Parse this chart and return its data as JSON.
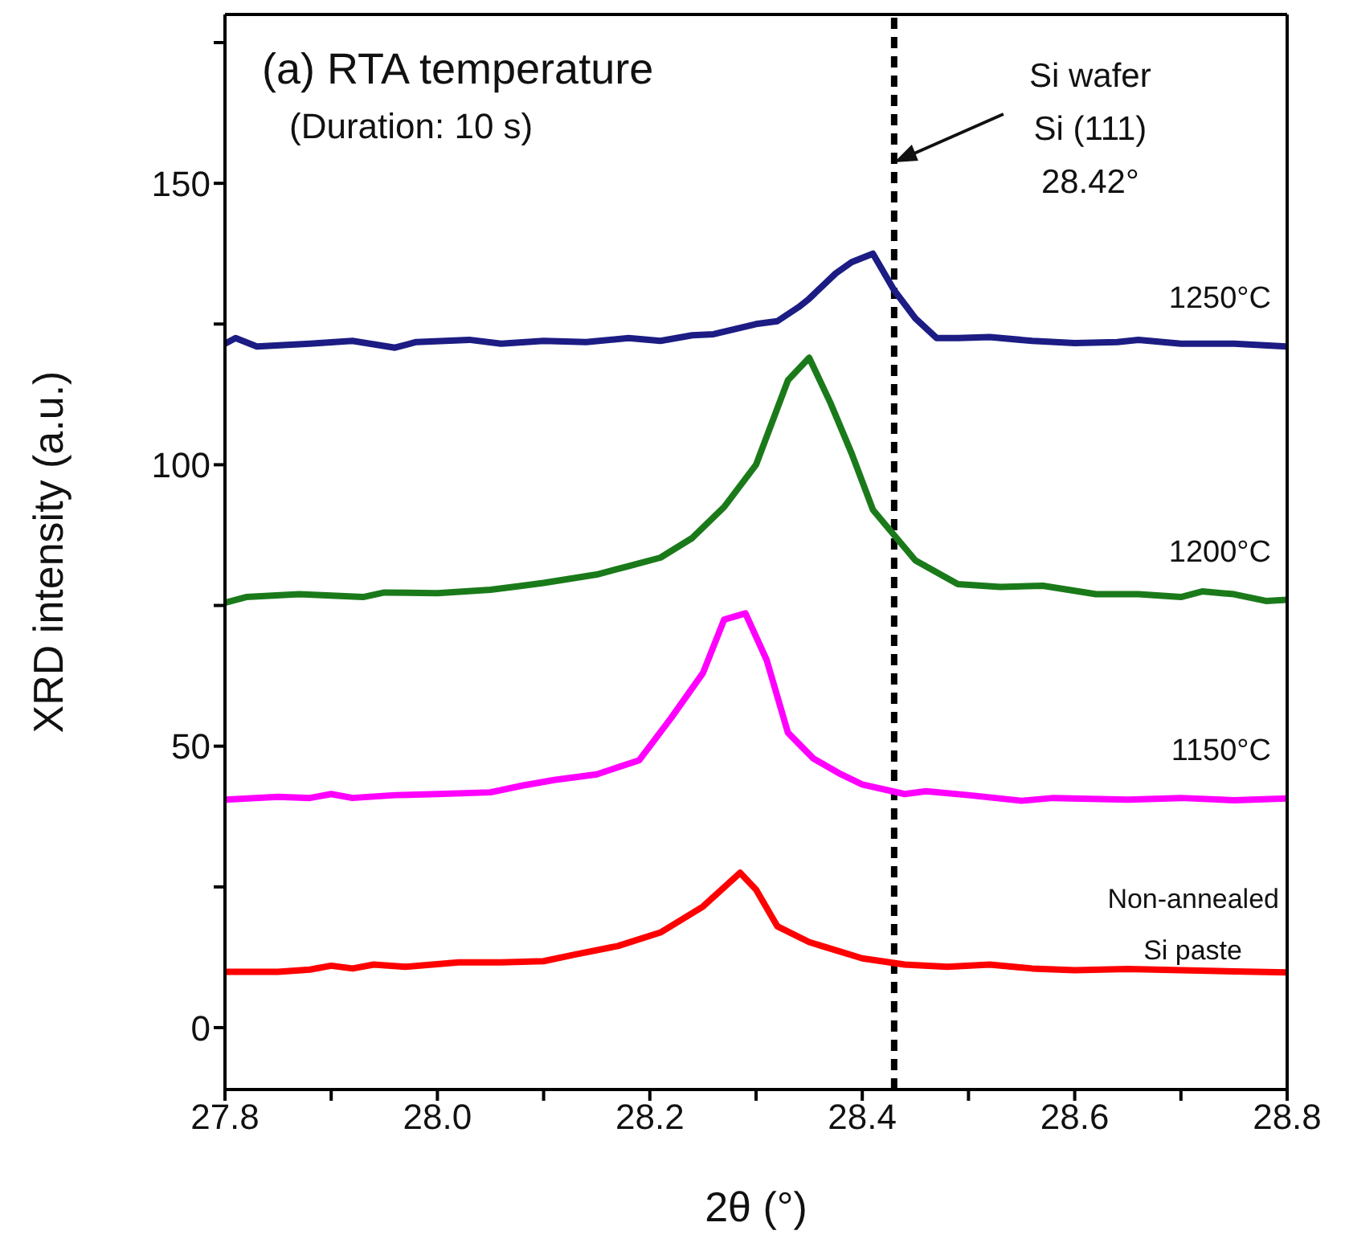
{
  "chart_data": {
    "type": "line",
    "title": "(a) RTA temperature",
    "subtitle": "(Duration: 10 s)",
    "xlabel": "2θ (°)",
    "ylabel": "XRD intensity (a.u.)",
    "xlim": [
      27.8,
      28.8
    ],
    "xticks": [
      27.8,
      {
        "value": 27.9,
        "label": null
      },
      {
        "value": 28,
        "label": "28.0"
      },
      {
        "value": 28.1,
        "label": null
      },
      28.2,
      {
        "value": 28.3,
        "label": null
      },
      28.4,
      {
        "value": 28.5,
        "label": null
      },
      28.6,
      {
        "value": 28.7,
        "label": null
      },
      28.8
    ],
    "ylim": [
      -11,
      180
    ],
    "yticks": [
      0,
      {
        "value": 25,
        "label": null
      },
      50,
      {
        "value": 75,
        "label": null
      },
      100,
      {
        "value": 125,
        "label": null
      },
      150,
      {
        "value": 175,
        "label": null
      }
    ],
    "grid": false,
    "legend": false,
    "marker": "none",
    "line_style": "solid",
    "ref_lines": [
      {
        "axis": "x",
        "value": 28.43,
        "color": "#000000",
        "line_style": "dashed"
      }
    ],
    "annotations": [
      "Si wafer Si (111) 28.42°"
    ],
    "series": [
      {
        "name": "1250°C",
        "color": "#1c1c84",
        "x": [
          27.8,
          27.81,
          27.83,
          27.88,
          27.92,
          27.96,
          27.98,
          28.03,
          28.06,
          28.1,
          28.14,
          28.18,
          28.21,
          28.24,
          28.26,
          28.3,
          28.32,
          28.34,
          28.35,
          28.375,
          28.39,
          28.41,
          28.43,
          28.45,
          28.47,
          28.49,
          28.52,
          28.56,
          28.6,
          28.64,
          28.66,
          28.7,
          28.75,
          28.8
        ],
        "values": [
          121.5,
          122.5,
          121,
          121.5,
          122,
          120.8,
          121.8,
          122.2,
          121.5,
          122,
          121.8,
          122.5,
          122,
          123,
          123.2,
          125,
          125.5,
          128,
          129.5,
          134,
          136,
          137.5,
          131,
          126,
          122.5,
          122.5,
          122.7,
          122,
          121.6,
          121.8,
          122.2,
          121.5,
          121.5,
          121
        ]
      },
      {
        "name": "1200°C",
        "color": "#1a7a1a",
        "x": [
          27.8,
          27.82,
          27.87,
          27.93,
          27.95,
          28.0,
          28.05,
          28.08,
          28.1,
          28.15,
          28.18,
          28.21,
          28.24,
          28.27,
          28.3,
          28.33,
          28.35,
          28.37,
          28.39,
          28.41,
          28.45,
          28.49,
          28.53,
          28.57,
          28.62,
          28.66,
          28.7,
          28.72,
          28.75,
          28.78,
          28.8
        ],
        "values": [
          75.5,
          76.5,
          77,
          76.5,
          77.3,
          77.2,
          77.8,
          78.5,
          79,
          80.5,
          82,
          83.5,
          87,
          92.5,
          100,
          115,
          119,
          111,
          102,
          92,
          83,
          78.8,
          78.3,
          78.5,
          77,
          77,
          76.5,
          77.5,
          77,
          75.8,
          76
        ]
      },
      {
        "name": "1150°C",
        "color": "#ff00ff",
        "x": [
          27.8,
          27.85,
          27.88,
          27.9,
          27.92,
          27.96,
          28.0,
          28.05,
          28.08,
          28.11,
          28.15,
          28.19,
          28.22,
          28.25,
          28.27,
          28.29,
          28.31,
          28.33,
          28.354,
          28.38,
          28.4,
          28.44,
          28.46,
          28.5,
          28.55,
          28.58,
          28.65,
          28.7,
          28.75,
          28.8
        ],
        "values": [
          40.5,
          41,
          40.8,
          41.5,
          40.8,
          41.3,
          41.5,
          41.8,
          43,
          44,
          45,
          47.5,
          55,
          63,
          72.5,
          73.6,
          65.3,
          52.4,
          47.8,
          45,
          43.2,
          41.5,
          42,
          41.3,
          40.3,
          40.8,
          40.5,
          40.8,
          40.4,
          40.7
        ]
      },
      {
        "name": "Non-annealed Si paste",
        "color": "#ff0000",
        "x": [
          27.8,
          27.85,
          27.88,
          27.9,
          27.92,
          27.94,
          27.97,
          28.02,
          28.06,
          28.1,
          28.13,
          28.17,
          28.21,
          28.25,
          28.285,
          28.3,
          28.32,
          28.35,
          28.4,
          28.44,
          28.48,
          28.52,
          28.56,
          28.6,
          28.65,
          28.7,
          28.75,
          28.8
        ],
        "values": [
          9.9,
          9.9,
          10.3,
          11,
          10.5,
          11.2,
          10.8,
          11.6,
          11.6,
          11.8,
          13,
          14.5,
          16.9,
          21.5,
          27.5,
          24.5,
          18,
          15.2,
          12.3,
          11.2,
          10.8,
          11.2,
          10.5,
          10.2,
          10.4,
          10.2,
          10,
          9.8
        ]
      }
    ]
  }
}
